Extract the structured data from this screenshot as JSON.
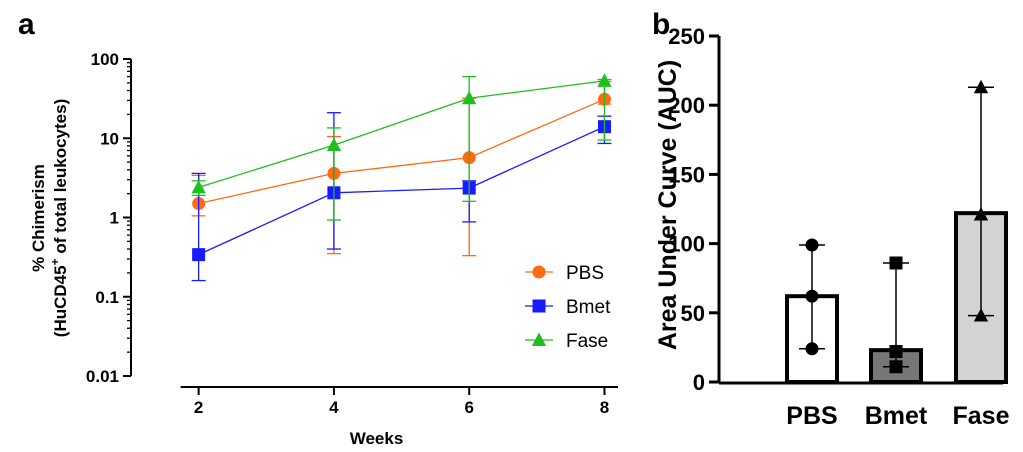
{
  "panels": {
    "a": {
      "label": "a"
    },
    "b": {
      "label": "b"
    }
  },
  "chart_data": [
    {
      "panel": "a",
      "type": "line",
      "xlabel": "Weeks",
      "ylabel_line1": "% Chimerism",
      "ylabel_line2_prefix": "(HuCD45",
      "ylabel_line2_sup": "+",
      "ylabel_line2_suffix": " of total leukocytes)",
      "x_ticks": [
        2,
        4,
        6,
        8
      ],
      "y_scale": "log",
      "ylim": [
        0.01,
        100
      ],
      "y_ticks": [
        {
          "value": 0.01,
          "label": "0.01"
        },
        {
          "value": 0.1,
          "label": "0.1"
        },
        {
          "value": 1,
          "label": "1"
        },
        {
          "value": 10,
          "label": "10"
        },
        {
          "value": 100,
          "label": "100"
        }
      ],
      "xlim": [
        1,
        8.2
      ],
      "grid": false,
      "legend_position": "bottom-right",
      "series": [
        {
          "name": "PBS",
          "color": "#ff6a13",
          "marker": "circle",
          "x": [
            2,
            4,
            6,
            8
          ],
          "y": [
            1.5,
            3.6,
            5.7,
            31
          ],
          "err_low": [
            1.05,
            0.35,
            0.33,
            27
          ],
          "err_high": [
            3.4,
            10.5,
            32,
            52
          ]
        },
        {
          "name": "Bmet",
          "color": "#1a1aff",
          "marker": "square",
          "x": [
            2,
            4,
            6,
            8
          ],
          "y": [
            0.34,
            2.05,
            2.35,
            14
          ],
          "err_low": [
            0.16,
            0.4,
            0.88,
            8.6
          ],
          "err_high": [
            3.6,
            21,
            2.9,
            19
          ]
        },
        {
          "name": "Fase",
          "color": "#1fbf1f",
          "marker": "triangle",
          "x": [
            2,
            4,
            6,
            8
          ],
          "y": [
            2.4,
            8.2,
            32,
            53
          ],
          "err_low": [
            1.9,
            0.93,
            1.6,
            9.5
          ],
          "err_high": [
            2.9,
            13.5,
            60,
            55
          ]
        }
      ]
    },
    {
      "panel": "b",
      "type": "bar",
      "ylabel": "Area Under Curve (AUC)",
      "categories": [
        "PBS",
        "Bmet",
        "Fase"
      ],
      "values": [
        62,
        23,
        122
      ],
      "bar_fills": [
        "#ffffff",
        "#777777",
        "#d3d3d3"
      ],
      "markers": [
        "circle",
        "square",
        "triangle"
      ],
      "points": [
        [
          99,
          62,
          24
        ],
        [
          86,
          22,
          11
        ],
        [
          213,
          121,
          48
        ]
      ],
      "range_low": [
        24,
        11,
        48
      ],
      "range_high": [
        99,
        86,
        213
      ],
      "ylim": [
        0,
        250
      ],
      "y_ticks": [
        0,
        50,
        100,
        150,
        200,
        250
      ],
      "grid": false
    }
  ]
}
